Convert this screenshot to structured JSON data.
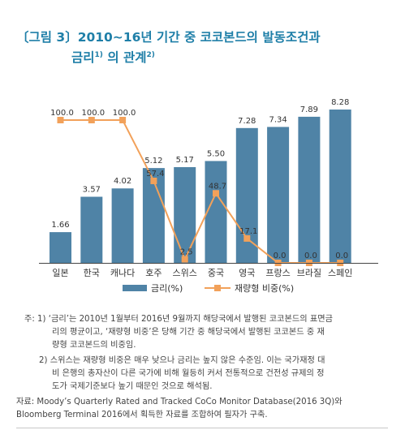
{
  "title": {
    "line1": "〔그림 3〕2010∼16년 기간 중 코코본드의 발동조건과",
    "line2_main": "금리",
    "line2_sup1": "1)",
    "line2_mid": "의 관계",
    "line2_sup2": "2)"
  },
  "chart_data": {
    "type": "bar",
    "categories": [
      "일본",
      "한국",
      "캐나다",
      "호주",
      "스위스",
      "중국",
      "영국",
      "프랑스",
      "브라질",
      "스페인"
    ],
    "series": [
      {
        "name": "금리(%)",
        "type": "bar",
        "values": [
          1.66,
          3.57,
          4.02,
          5.12,
          5.17,
          5.5,
          7.28,
          7.34,
          7.89,
          8.28
        ],
        "labels": [
          "1.66",
          "3.57",
          "4.02",
          "5.12",
          "5.17",
          "5.50",
          "7.28",
          "7.34",
          "7.89",
          "8.28"
        ]
      },
      {
        "name": "재량형 비중(%)",
        "type": "line",
        "values": [
          100.0,
          100.0,
          100.0,
          57.4,
          2.5,
          48.7,
          17.1,
          0.0,
          0.0,
          0.0
        ],
        "labels": [
          "100.0",
          "100.0",
          "100.0",
          "57.4",
          "2.5",
          "48.7",
          "17.1",
          "0.0",
          "0.0",
          "0.0"
        ]
      }
    ],
    "bar_ylim": [
      0,
      9
    ],
    "line_ylim": [
      0,
      100
    ],
    "legend_position": "bottom",
    "colors": {
      "bar": "#4f83a6",
      "line": "#f2a15a",
      "axis": "#444444"
    }
  },
  "notes": {
    "note1_line1": "주: 1) ‘금리’는 2010년 1월부터 2016년 9월까지 해당국에서 발행된 코코본드의 표면금",
    "note1_line2": "리의 평균이고, ‘재량형 비중’은 당해 기간 중 해당국에서 발행된 코코본드 중 재",
    "note1_line3": "량형 코코본드의 비중임.",
    "note2_line1": "2) 스위스는 재량형 비중은 매우 낮으나 금리는 높지 않은 수준임. 이는 국가재정 대",
    "note2_line2": "비 은행의 총자산이 다른 국가에 비해 월등히 커서 전통적으로 건전성 규제의 정",
    "note2_line3": "도가 국제기준보다 높기 때문인 것으로 해석됨.",
    "source_line1": "자료: Moody’s Quarterly Rated and Tracked CoCo Monitor Database(2016 3Q)와",
    "source_line2": "Bloomberg Terminal 2016에서 획득한 자료를 조합하여 필자가 구축."
  }
}
